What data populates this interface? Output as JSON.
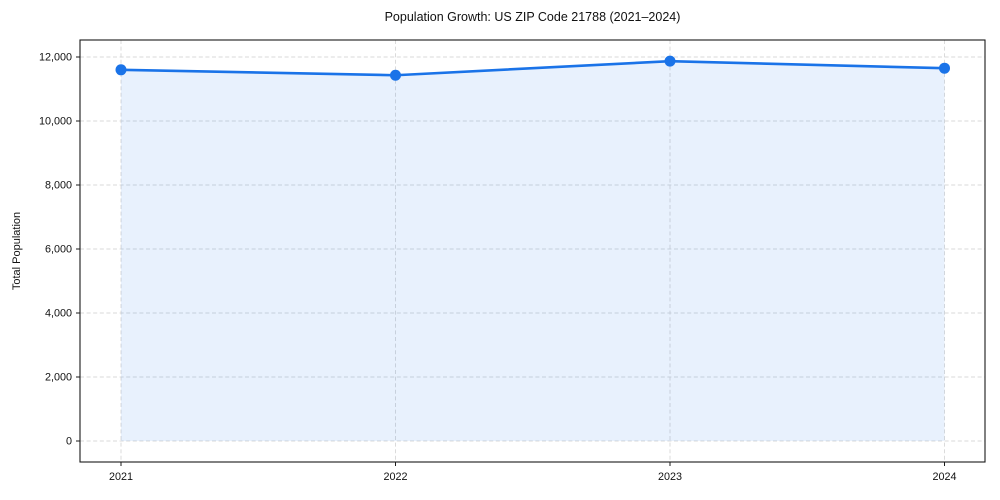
{
  "chart_data": {
    "type": "line",
    "title": "Population Growth: US ZIP Code 21788 (2021–2024)",
    "xlabel": "",
    "ylabel": "Total Population",
    "categories": [
      "2021",
      "2022",
      "2023",
      "2024"
    ],
    "series": [
      {
        "name": "Total Population",
        "values": [
          11600,
          11430,
          11870,
          11650
        ]
      }
    ],
    "values": [
      11600,
      11430,
      11870,
      11650
    ],
    "yticks": [
      0,
      2000,
      4000,
      6000,
      8000,
      10000,
      12000
    ],
    "ytick_labels": [
      "0",
      "2,000",
      "4,000",
      "6,000",
      "8,000",
      "10,000",
      "12,000"
    ],
    "ylim": [
      -650,
      12530
    ],
    "grid": true,
    "grid_style": "dashed",
    "legend": "none",
    "area_fill": true,
    "marker": "circle",
    "colors": {
      "line": "#1a73e8",
      "marker": "#1a73e8",
      "area_fill": "rgba(26,115,232,0.10)",
      "gridline": "#d8d8d8",
      "axis": "#1a1a1a",
      "text": "#111111"
    }
  }
}
